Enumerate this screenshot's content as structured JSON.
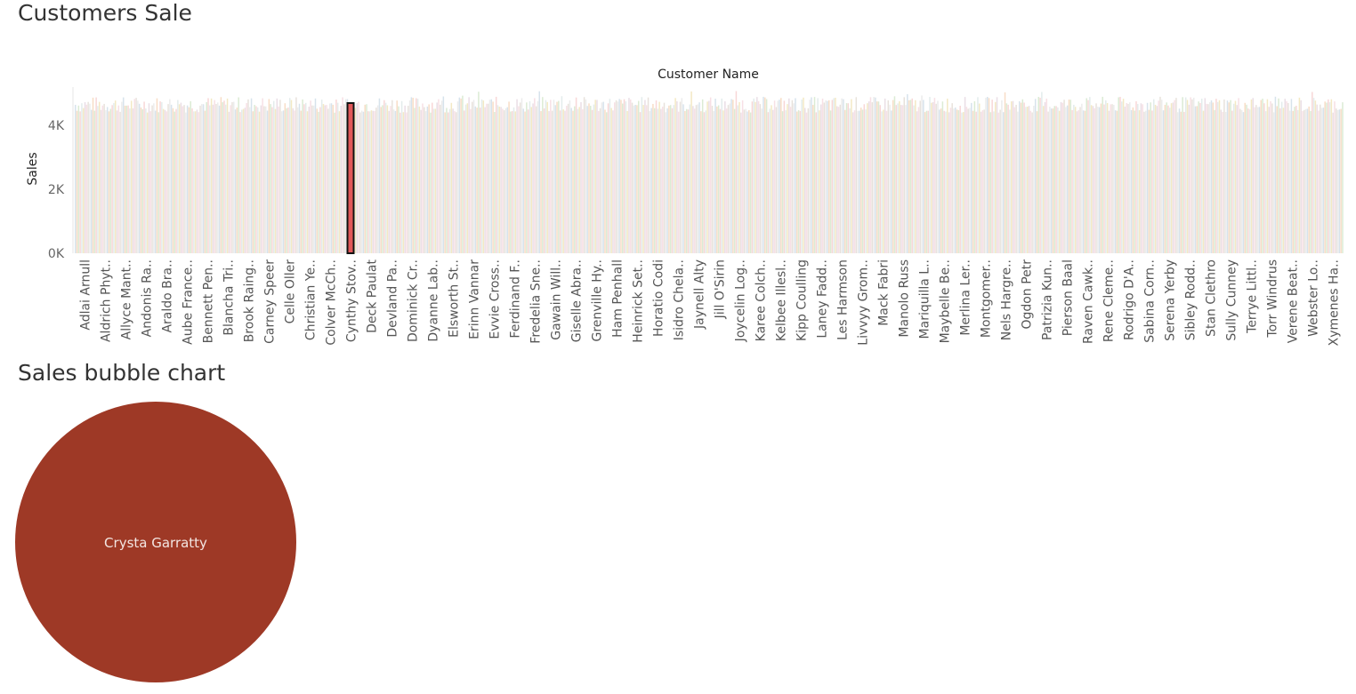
{
  "charts": {
    "bar": {
      "title": "Customers Sale"
    },
    "bubble": {
      "title": "Sales bubble chart"
    }
  },
  "chart_data": [
    {
      "type": "bar",
      "title": "Customers Sale",
      "top_label": "Customer Name",
      "xlabel": "",
      "ylabel": "Sales",
      "ylim": [
        0,
        5200
      ],
      "yticks": [
        0,
        2000,
        4000
      ],
      "ytick_labels": [
        "0K",
        "2K",
        "4K"
      ],
      "grid": false,
      "bar_count": 793,
      "typical_value_range": [
        4400,
        4900
      ],
      "highlighted": {
        "label": "Cynthy Stov..",
        "value": 4700,
        "color": "#e15759",
        "outline": "#111111"
      },
      "faded_palette": [
        "#c9d9e6",
        "#f6d2b3",
        "#cfe4c5",
        "#f5c9c9",
        "#d9e6e6",
        "#efe2b0",
        "#e3d3de",
        "#f4d6dc",
        "#e0d8d0",
        "#e6e6e6"
      ],
      "categories": [
        "Adlai Arnull",
        "Aldrich Phyt..",
        "Allyce Mant..",
        "Andonis Ra..",
        "Araldo Bra..",
        "Aube France..",
        "Bennett Pen..",
        "Blancha Tri..",
        "Brook Raing..",
        "Carney Speer",
        "Celle Oller",
        "Christian Ye..",
        "Colver McCh..",
        "Cynthy Stov..",
        "Deck Paulat",
        "Devland Pa..",
        "Dominick Cr..",
        "Dyanne Lab..",
        "Elsworth St..",
        "Erinn Vannar",
        "Evvie Cross..",
        "Ferdinand F..",
        "Fredelia Sne..",
        "Gawain Will..",
        "Giselle Abra..",
        "Grenville Hy..",
        "Ham Penhall",
        "Heinrick Set..",
        "Horatio Codi",
        "Isidro Chela..",
        "Jaynell Alty",
        "Jill O'Sirin",
        "Joycelin Log..",
        "Karee Colch..",
        "Kelbee Illesl..",
        "Kipp Coulling",
        "Laney Fadd..",
        "Les Harmson",
        "Livvyy Grom..",
        "Mack Fabri",
        "Manolo Russ",
        "Mariquilla L..",
        "Maybelle Be..",
        "Merlina Ler..",
        "Montgomer..",
        "Nels Hargre..",
        "Ogdon Petr",
        "Patrizia Kun..",
        "Pierson Baal",
        "Raven Cawk..",
        "Rene Cleme..",
        "Rodrigo D'A..",
        "Sabina Corn..",
        "Serena Yerby",
        "Sibley Rodd..",
        "Stan Clethro",
        "Sully Cunney",
        "Terrye Littl..",
        "Torr Windrus",
        "Verene Beat..",
        "Webster Lo..",
        "Xymenes Ha.."
      ]
    },
    {
      "type": "scatter",
      "subtype": "bubble",
      "title": "Sales bubble chart",
      "points": [
        {
          "label": "Crysta Garratty",
          "size": 1,
          "color": "#9e3926"
        }
      ]
    }
  ]
}
